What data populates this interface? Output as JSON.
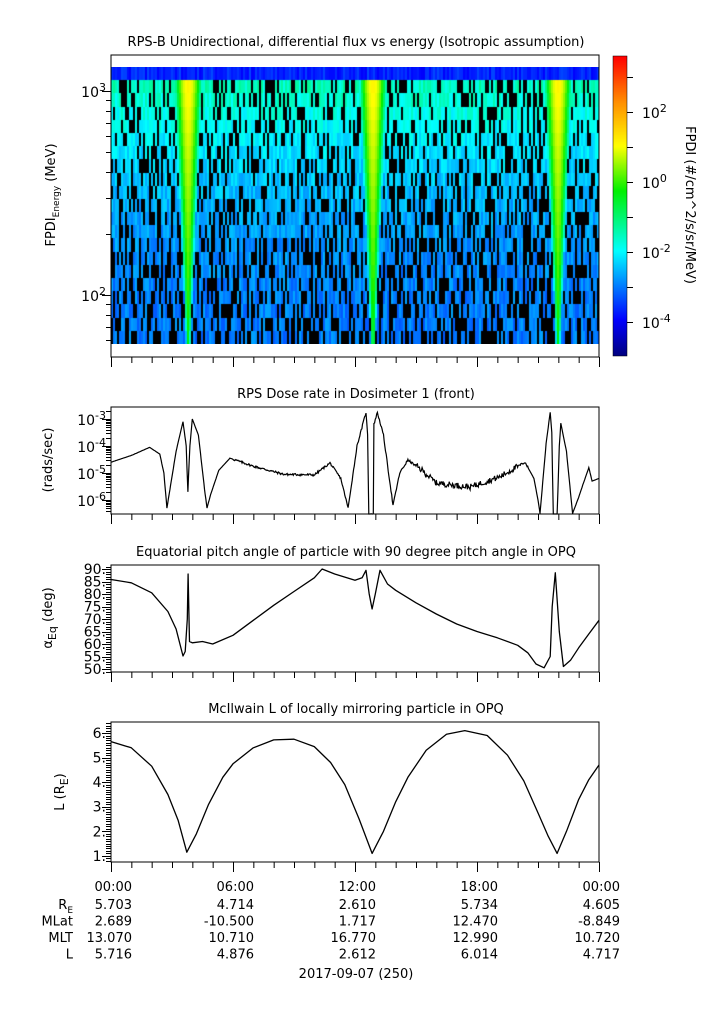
{
  "colors": {
    "axis": "#000000",
    "line": "#000000",
    "no_data": "#000000"
  },
  "chart_data": [
    {
      "type": "heatmap",
      "title": "RPS-B  Unidirectional, differential flux vs energy (Isotropic assumption)",
      "ylabel": {
        "main": "FPDI",
        "sub": "Energy",
        "unit": " (MeV)"
      },
      "yscale": "log",
      "ylim": [
        50,
        1500
      ],
      "yticks": [
        {
          "value": 1000,
          "base": "10",
          "exp": "3"
        },
        {
          "value": 100,
          "base": "10",
          "exp": "2"
        }
      ],
      "xlim_hours": [
        0,
        24
      ],
      "colorbar": {
        "label": "FPDI (#/cm^2/s/sr/MeV)",
        "scale": "log",
        "range_log10": [
          -5,
          3.6
        ],
        "colormap": "jet",
        "ticks": [
          {
            "exp": "2",
            "value": 2
          },
          {
            "exp": "0",
            "value": 0
          },
          {
            "exp": "-2",
            "value": -2
          },
          {
            "exp": "-4",
            "value": -4
          }
        ],
        "base": "10"
      },
      "radiation_belt_crossings_hours": [
        3.75,
        12.84,
        21.94
      ]
    },
    {
      "type": "line",
      "title": "RPS  Dose rate in Dosimeter 1 (front)",
      "ylabel": "(rads/sec)",
      "yscale": "log",
      "ylim_log10": [
        -6.52,
        -2.55
      ],
      "yticks": [
        {
          "exp": "-3",
          "value": -3
        },
        {
          "exp": "-4",
          "value": -4
        },
        {
          "exp": "-5",
          "value": -5
        },
        {
          "exp": "-6",
          "value": -6
        }
      ],
      "base": "10",
      "x_hours": [
        0,
        1,
        1.9,
        2.4,
        2.6,
        2.75,
        2.9,
        3.2,
        3.54,
        3.7,
        3.78,
        3.88,
        4.0,
        4.3,
        4.6,
        4.72,
        4.9,
        5.3,
        5.85,
        7,
        8.5,
        10,
        10.77,
        11.3,
        11.66,
        12.1,
        12.54,
        12.62,
        12.68,
        12.72,
        12.9,
        12.93,
        13.1,
        13.4,
        13.87,
        14.2,
        14.6,
        15.3,
        16.0,
        17.66,
        19.1,
        20.36,
        20.8,
        21.0,
        21.1,
        21.4,
        21.6,
        21.68,
        21.75,
        21.94,
        22.05,
        22.12,
        22.4,
        22.7,
        23.0,
        23.2,
        23.5,
        23.66,
        24
      ],
      "y_log10": [
        -4.6,
        -4.35,
        -4.05,
        -4.3,
        -5.0,
        -6.3,
        -5.6,
        -4.2,
        -3.1,
        -4.0,
        -5.7,
        -4.0,
        -3.0,
        -3.6,
        -5.6,
        -6.3,
        -5.8,
        -4.9,
        -4.45,
        -4.75,
        -5.05,
        -5.07,
        -4.63,
        -5.2,
        -6.3,
        -4.0,
        -2.75,
        -3.6,
        -6.52,
        -6.52,
        -6.52,
        -3.2,
        -2.75,
        -3.6,
        -6.2,
        -5.0,
        -4.52,
        -4.9,
        -5.37,
        -5.52,
        -5.15,
        -4.6,
        -5.2,
        -6.0,
        -6.5,
        -3.9,
        -2.75,
        -3.5,
        -6.52,
        -6.52,
        -4.0,
        -3.15,
        -4.2,
        -6.5,
        -5.9,
        -5.45,
        -4.8,
        -5.3,
        -5.2
      ]
    },
    {
      "type": "line",
      "title": "Equatorial pitch angle of particle with 90 degree pitch angle in OPQ",
      "ylabel": {
        "main": "α",
        "sub": "Eq",
        "unit": " (deg)"
      },
      "ylim": [
        48.8,
        91.6
      ],
      "yticks": [
        "90.",
        "85.",
        "80.",
        "75.",
        "70.",
        "65.",
        "60.",
        "55.",
        "50."
      ],
      "ytick_values": [
        90,
        85,
        80,
        75,
        70,
        65,
        60,
        55,
        50
      ],
      "x_hours": [
        0,
        1,
        2,
        2.8,
        3.2,
        3.45,
        3.54,
        3.65,
        3.75,
        3.79,
        3.86,
        4.0,
        4.5,
        5,
        6,
        7,
        8,
        9,
        10,
        10.38,
        11,
        12,
        12.35,
        12.54,
        12.7,
        12.84,
        13.0,
        13.23,
        13.6,
        14,
        15,
        16,
        17,
        18,
        19,
        20,
        20.5,
        20.9,
        21.3,
        21.6,
        21.7,
        21.85,
        22.05,
        22.25,
        22.6,
        23,
        23.5,
        24
      ],
      "y": [
        85.8,
        84.5,
        80.5,
        73,
        66,
        58,
        55.2,
        57,
        70,
        88,
        61,
        60.5,
        61,
        60,
        63.5,
        69.5,
        75.5,
        81,
        86.5,
        90,
        88,
        85.5,
        86.5,
        89.5,
        80,
        74,
        80,
        89.5,
        84,
        81.5,
        76.5,
        72,
        68,
        65,
        62.5,
        59.5,
        56.5,
        52,
        50.5,
        55,
        75,
        88.5,
        65,
        51,
        53.5,
        58.5,
        64,
        69.5
      ]
    },
    {
      "type": "line",
      "title": "McIlwain L of locally mirroring particle in OPQ",
      "ylabel": {
        "main": "L (R",
        "sub": "E",
        "unit": ")"
      },
      "ylim": [
        0.75,
        6.45
      ],
      "yticks": [
        "6.",
        "5.",
        "4.",
        "3.",
        "2.",
        "1."
      ],
      "ytick_values": [
        6,
        5,
        4,
        3,
        2,
        1
      ],
      "x_hours": [
        0,
        1,
        2,
        2.8,
        3.3,
        3.73,
        4.2,
        4.8,
        5.5,
        6,
        7,
        8,
        9,
        10,
        10.8,
        11.5,
        12.2,
        12.84,
        13.4,
        14,
        14.6,
        15.5,
        16.5,
        17.4,
        18.5,
        19.5,
        20.3,
        21.0,
        21.5,
        21.94,
        22.4,
        23,
        23.5,
        24
      ],
      "y": [
        5.65,
        5.4,
        4.65,
        3.5,
        2.45,
        1.15,
        1.9,
        3.1,
        4.2,
        4.75,
        5.4,
        5.72,
        5.75,
        5.45,
        4.8,
        3.9,
        2.5,
        1.1,
        2.0,
        3.2,
        4.2,
        5.3,
        5.95,
        6.1,
        5.9,
        5.1,
        4.05,
        2.75,
        1.8,
        1.1,
        2.0,
        3.3,
        4.1,
        4.7
      ]
    }
  ],
  "xaxis": {
    "tick_labels": [
      "00:00",
      "06:00",
      "12:00",
      "18:00",
      "00:00"
    ],
    "rows": [
      {
        "label": "R",
        "label_sub": "E",
        "values": [
          "5.703",
          "4.714",
          "2.610",
          "5.734",
          "4.605"
        ]
      },
      {
        "label": "MLat",
        "label_sub": "",
        "values": [
          "2.689",
          "-10.500",
          "1.717",
          "12.470",
          "-8.849"
        ]
      },
      {
        "label": "MLT",
        "label_sub": "",
        "values": [
          "13.070",
          "10.710",
          "16.770",
          "12.990",
          "10.720"
        ]
      },
      {
        "label": "L",
        "label_sub": "",
        "values": [
          "5.716",
          "4.876",
          "2.612",
          "6.014",
          "4.717"
        ]
      }
    ],
    "date_label": "2017-09-07 (250)"
  }
}
